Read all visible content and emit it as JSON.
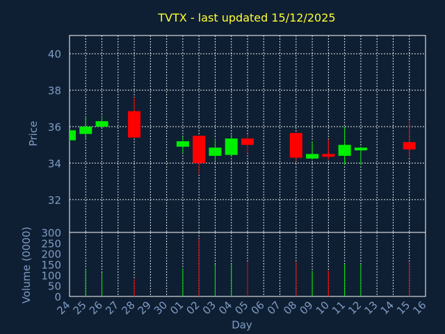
{
  "chart_data": {
    "type": "candlestick",
    "title": "TVTX - last updated 15/12/2025",
    "xlabel": "Day",
    "ylabel": "Price",
    "volume_label": "Volume (0000)",
    "x_ticks": [
      "24",
      "25",
      "26",
      "27",
      "28",
      "29",
      "30",
      "01",
      "02",
      "03",
      "04",
      "05",
      "06",
      "07",
      "08",
      "09",
      "10",
      "11",
      "12",
      "13",
      "14",
      "15",
      "16"
    ],
    "price_yticks": [
      32,
      34,
      36,
      38,
      40
    ],
    "price_ylim": [
      30.2,
      41.0
    ],
    "volume_yticks": [
      0,
      50,
      100,
      150,
      200,
      250,
      300
    ],
    "volume_ylim": [
      0,
      300
    ],
    "up_color": "#00ee00",
    "down_color": "#ff0000",
    "grid": true,
    "candles": [
      {
        "day": "24",
        "open": 35.25,
        "high": 35.8,
        "low": 35.2,
        "close": 35.8,
        "volume": 0
      },
      {
        "day": "25",
        "open": 35.6,
        "high": 36.55,
        "low": 35.3,
        "close": 36.0,
        "volume": 130
      },
      {
        "day": "26",
        "open": 36.0,
        "high": 36.6,
        "low": 35.95,
        "close": 36.3,
        "volume": 110
      },
      {
        "day": "28",
        "open": 36.85,
        "high": 37.6,
        "low": 35.4,
        "close": 35.4,
        "volume": 80
      },
      {
        "day": "01",
        "open": 34.9,
        "high": 35.45,
        "low": 34.55,
        "close": 35.2,
        "volume": 130
      },
      {
        "day": "02",
        "open": 35.5,
        "high": 35.5,
        "low": 33.4,
        "close": 34.0,
        "volume": 270
      },
      {
        "day": "03",
        "open": 34.4,
        "high": 35.35,
        "low": 34.1,
        "close": 34.85,
        "volume": 150
      },
      {
        "day": "04",
        "open": 34.45,
        "high": 35.55,
        "low": 34.4,
        "close": 35.35,
        "volume": 150
      },
      {
        "day": "05",
        "open": 35.35,
        "high": 35.55,
        "low": 34.55,
        "close": 35.0,
        "volume": 160
      },
      {
        "day": "08",
        "open": 35.65,
        "high": 35.7,
        "low": 34.1,
        "close": 34.3,
        "volume": 160
      },
      {
        "day": "09",
        "open": 34.25,
        "high": 35.2,
        "low": 34.2,
        "close": 34.5,
        "volume": 120
      },
      {
        "day": "10",
        "open": 34.5,
        "high": 35.3,
        "low": 34.2,
        "close": 34.35,
        "volume": 120
      },
      {
        "day": "11",
        "open": 34.4,
        "high": 36.0,
        "low": 33.9,
        "close": 35.0,
        "volume": 150
      },
      {
        "day": "12",
        "open": 34.7,
        "high": 34.9,
        "low": 33.9,
        "close": 34.85,
        "volume": 150
      },
      {
        "day": "15",
        "open": 35.15,
        "high": 36.3,
        "low": 34.35,
        "close": 34.75,
        "volume": 160
      }
    ]
  }
}
